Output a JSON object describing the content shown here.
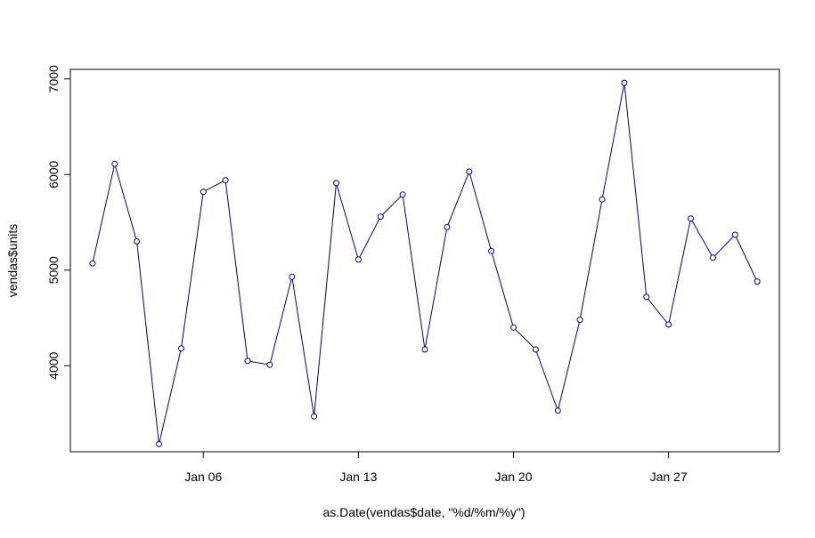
{
  "chart_data": {
    "type": "line",
    "title": "",
    "xlabel": "as.Date(vendas$date, \"%d/%m/%y\")",
    "ylabel": "vendas$units",
    "x": [
      "2013-01-01",
      "2013-01-02",
      "2013-01-03",
      "2013-01-04",
      "2013-01-05",
      "2013-01-06",
      "2013-01-07",
      "2013-01-08",
      "2013-01-09",
      "2013-01-10",
      "2013-01-11",
      "2013-01-12",
      "2013-01-13",
      "2013-01-14",
      "2013-01-15",
      "2013-01-16",
      "2013-01-17",
      "2013-01-18",
      "2013-01-19",
      "2013-01-20",
      "2013-01-21",
      "2013-01-22",
      "2013-01-23",
      "2013-01-24",
      "2013-01-25",
      "2013-01-26",
      "2013-01-27",
      "2013-01-28",
      "2013-01-29",
      "2013-01-30",
      "2013-01-31"
    ],
    "series": [
      {
        "values": [
          5070,
          6110,
          5300,
          3180,
          4180,
          5820,
          5940,
          4050,
          4010,
          4930,
          3470,
          5910,
          5110,
          5560,
          5790,
          4170,
          5450,
          6030,
          5200,
          4400,
          4170,
          3530,
          4480,
          5740,
          6960,
          4720,
          4430,
          5540,
          5130,
          5370,
          4880
        ]
      }
    ],
    "xlim": [
      "2012-12-31",
      "2013-02-01"
    ],
    "ylim": [
      3100,
      7100
    ],
    "x_ticks": [
      {
        "date": "2013-01-06",
        "label": "Jan 06"
      },
      {
        "date": "2013-01-13",
        "label": "Jan 13"
      },
      {
        "date": "2013-01-20",
        "label": "Jan 20"
      },
      {
        "date": "2013-01-27",
        "label": "Jan 27"
      }
    ],
    "y_ticks": [
      {
        "value": 4000,
        "label": "4000"
      },
      {
        "value": 5000,
        "label": "5000"
      },
      {
        "value": 6000,
        "label": "6000"
      },
      {
        "value": 7000,
        "label": "7000"
      }
    ],
    "grid": false,
    "legend": "none",
    "line_color": "#00008b",
    "marker": "open-circle"
  }
}
